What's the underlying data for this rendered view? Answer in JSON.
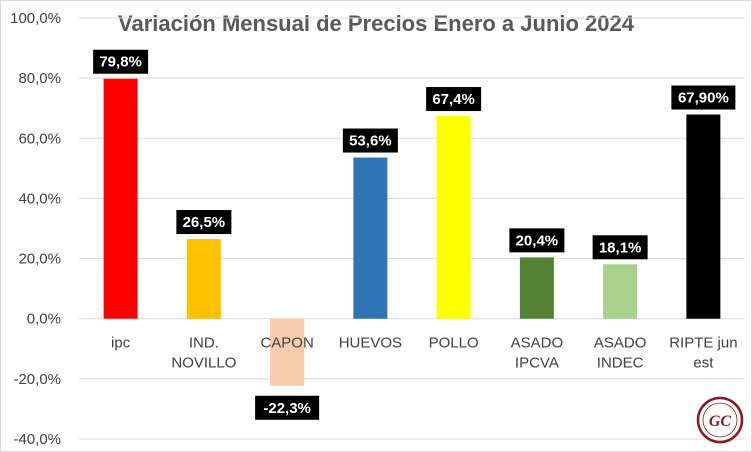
{
  "chart_data": {
    "type": "bar",
    "title": "Variación Mensual de Precios Enero a Junio 2024",
    "xlabel": "",
    "ylabel": "",
    "ylim": [
      -40,
      100
    ],
    "yticks": [
      100,
      80,
      60,
      40,
      20,
      0,
      -20,
      -40
    ],
    "ytick_labels": [
      "100,0%",
      "80,0%",
      "60,0%",
      "40,0%",
      "20,0%",
      "0,0%",
      "-20,0%",
      "-40,0%"
    ],
    "grid": true,
    "legend": "none",
    "categories": [
      [
        "ipc"
      ],
      [
        "IND.",
        "NOVILLO"
      ],
      [
        "CAPON"
      ],
      [
        "HUEVOS"
      ],
      [
        "POLLO"
      ],
      [
        "ASADO",
        "IPCVA"
      ],
      [
        "ASADO",
        "INDEC"
      ],
      [
        "RIPTE jun",
        "est"
      ]
    ],
    "values": [
      79.8,
      26.5,
      -22.3,
      53.6,
      67.4,
      20.4,
      18.1,
      67.9
    ],
    "value_labels": [
      "79,8%",
      "26,5%",
      "-22,3%",
      "53,6%",
      "67,4%",
      "20,4%",
      "18,1%",
      "67,90%"
    ],
    "colors": [
      "#ff0000",
      "#ffc000",
      "#f8cbad",
      "#2e75b6",
      "#ffff00",
      "#548235",
      "#a9d18e",
      "#000000"
    ],
    "label_bg": "#000000",
    "gridline_color": "#d9d9d9"
  },
  "logo": {
    "text": "GC"
  }
}
